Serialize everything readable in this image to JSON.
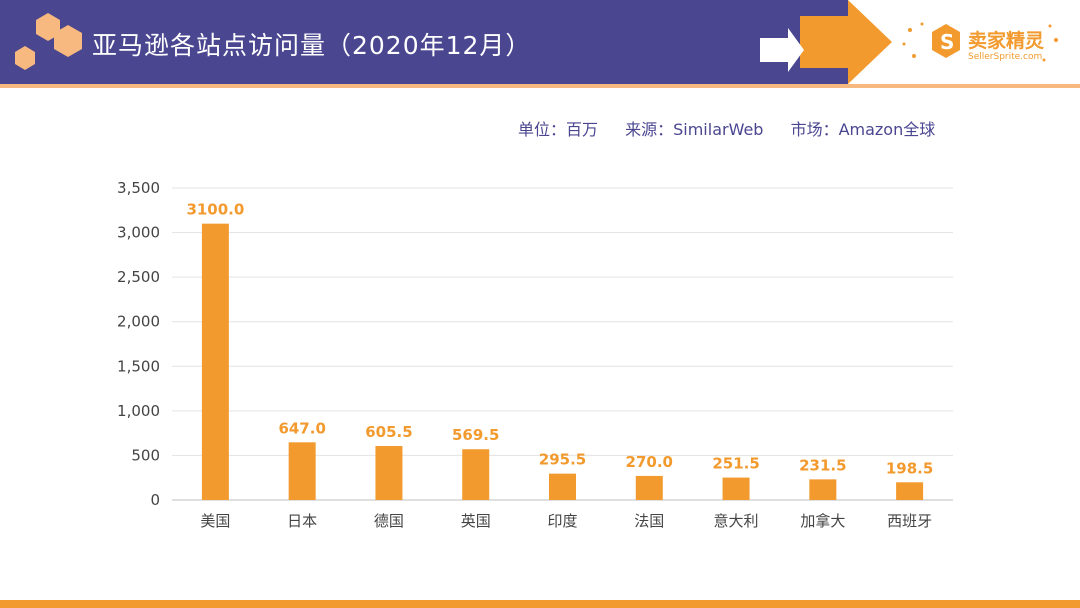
{
  "header": {
    "title": "亚马逊各站点访问量（2020年12月）",
    "logo_name": "卖家精灵",
    "logo_url_text": "SellerSprite.com"
  },
  "meta": {
    "unit": "单位：百万",
    "source": "来源：SimilarWeb",
    "market": "市场：Amazon全球"
  },
  "colors": {
    "header_band": "#4a4690",
    "accent": "#f29a2e",
    "bar": "#f29a2e"
  },
  "chart_data": {
    "type": "bar",
    "categories": [
      "美国",
      "日本",
      "德国",
      "英国",
      "印度",
      "法国",
      "意大利",
      "加拿大",
      "西班牙"
    ],
    "values": [
      3100.0,
      647.0,
      605.5,
      569.5,
      295.5,
      270.0,
      251.5,
      231.5,
      198.5
    ],
    "value_labels": [
      "3100.0",
      "647.0",
      "605.5",
      "569.5",
      "295.5",
      "270.0",
      "251.5",
      "231.5",
      "198.5"
    ],
    "y_ticks": [
      0,
      500,
      1000,
      1500,
      2000,
      2500,
      3000,
      3500
    ],
    "y_tick_labels": [
      "0",
      "500",
      "1,000",
      "1,500",
      "2,000",
      "2,500",
      "3,000",
      "3,500"
    ],
    "ylim": [
      0,
      3500
    ],
    "grid": true,
    "legend": "none"
  }
}
